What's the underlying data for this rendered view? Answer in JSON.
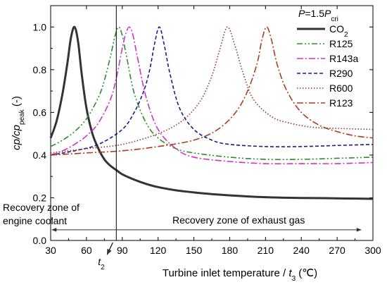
{
  "chart_data": {
    "type": "line",
    "xlabel": "Turbine inlet temperature / ",
    "xlabel_var": "t",
    "xlabel_sub": "3",
    "xlabel_unit": " (℃)",
    "ylabel_main": "cp/cp",
    "ylabel_sub": "peak",
    "ylabel_unit": " (-)",
    "xlim": [
      30,
      300
    ],
    "ylim": [
      0.0,
      1.1
    ],
    "x_ticks": [
      30,
      60,
      90,
      120,
      150,
      180,
      210,
      240,
      270,
      300
    ],
    "x_tick_labels": [
      "30",
      "60",
      "90",
      "120",
      "150",
      "180",
      "210",
      "240",
      "270",
      "300"
    ],
    "y_ticks": [
      0.0,
      0.2,
      0.4,
      0.6,
      0.8,
      1.0
    ],
    "y_tick_labels": [
      "0.0",
      "0.2",
      "0.4",
      "0.6",
      "0.8",
      "1.0"
    ],
    "grid": false,
    "legend_position": "top-right",
    "legend_title_main": "P",
    "legend_title_eq": "=1.5",
    "legend_title_var": "P",
    "legend_title_sub": "cri",
    "series": [
      {
        "name": "CO₂",
        "name_main": "CO",
        "name_sub": "2",
        "color": "#333333",
        "style": "solid",
        "peak_x": 50,
        "peak_y": 1.0,
        "x": [
          30,
          35,
          40,
          44,
          47,
          50,
          53,
          56,
          60,
          65,
          70,
          75,
          80,
          85,
          90,
          100,
          110,
          120,
          135,
          150,
          170,
          200,
          230,
          260,
          300
        ],
        "y": [
          0.48,
          0.56,
          0.69,
          0.83,
          0.95,
          1.0,
          0.93,
          0.78,
          0.62,
          0.5,
          0.43,
          0.38,
          0.35,
          0.33,
          0.31,
          0.285,
          0.265,
          0.25,
          0.235,
          0.225,
          0.215,
          0.205,
          0.2,
          0.198,
          0.195
        ]
      },
      {
        "name": "R125",
        "name_main": "R125",
        "name_sub": "",
        "color": "#2e8b2e",
        "style": "dashdotdot",
        "peak_x": 87,
        "peak_y": 1.0,
        "x": [
          30,
          40,
          50,
          60,
          70,
          75,
          80,
          84,
          87,
          90,
          94,
          100,
          110,
          120,
          135,
          150,
          180,
          210,
          240,
          270,
          300
        ],
        "y": [
          0.44,
          0.47,
          0.51,
          0.57,
          0.67,
          0.75,
          0.86,
          0.96,
          1.0,
          0.96,
          0.85,
          0.69,
          0.55,
          0.48,
          0.43,
          0.41,
          0.39,
          0.38,
          0.38,
          0.385,
          0.39
        ]
      },
      {
        "name": "R143a",
        "name_main": "R143a",
        "name_sub": "",
        "color": "#cc33cc",
        "style": "dashdot",
        "peak_x": 96,
        "peak_y": 1.0,
        "x": [
          30,
          40,
          50,
          60,
          70,
          80,
          85,
          90,
          93,
          96,
          99,
          103,
          110,
          120,
          135,
          150,
          180,
          210,
          240,
          270,
          300
        ],
        "y": [
          0.4,
          0.42,
          0.45,
          0.49,
          0.55,
          0.66,
          0.76,
          0.9,
          0.97,
          1.0,
          0.96,
          0.85,
          0.67,
          0.52,
          0.43,
          0.39,
          0.37,
          0.36,
          0.36,
          0.36,
          0.365
        ]
      },
      {
        "name": "R290",
        "name_main": "R290",
        "name_sub": "",
        "color": "#1a1a8c",
        "style": "dashed",
        "peak_x": 121,
        "peak_y": 1.0,
        "x": [
          30,
          50,
          70,
          90,
          100,
          108,
          113,
          117,
          121,
          125,
          130,
          138,
          150,
          165,
          180,
          210,
          240,
          270,
          300
        ],
        "y": [
          0.4,
          0.42,
          0.45,
          0.52,
          0.6,
          0.7,
          0.8,
          0.92,
          1.0,
          0.92,
          0.78,
          0.62,
          0.52,
          0.47,
          0.45,
          0.44,
          0.44,
          0.445,
          0.45
        ]
      },
      {
        "name": "R600",
        "name_main": "R600",
        "name_sub": "",
        "color": "#8b3a2e",
        "style": "dotted",
        "peak_x": 178,
        "peak_y": 1.0,
        "x": [
          30,
          60,
          90,
          120,
          140,
          155,
          165,
          172,
          178,
          184,
          192,
          200,
          215,
          230,
          250,
          270,
          300
        ],
        "y": [
          0.41,
          0.43,
          0.45,
          0.5,
          0.56,
          0.65,
          0.77,
          0.9,
          1.0,
          0.92,
          0.77,
          0.66,
          0.58,
          0.55,
          0.53,
          0.525,
          0.52
        ]
      },
      {
        "name": "R123",
        "name_main": "R123",
        "name_sub": "",
        "color": "#b03a1e",
        "style": "dashdot",
        "peak_x": 211,
        "peak_y": 1.0,
        "x": [
          30,
          60,
          90,
          120,
          150,
          170,
          185,
          195,
          203,
          207,
          211,
          215,
          220,
          228,
          240,
          255,
          270,
          285,
          300
        ],
        "y": [
          0.4,
          0.41,
          0.42,
          0.44,
          0.47,
          0.52,
          0.6,
          0.7,
          0.83,
          0.94,
          1.0,
          0.94,
          0.82,
          0.7,
          0.6,
          0.54,
          0.51,
          0.49,
          0.48
        ]
      }
    ],
    "vline_x": 85,
    "vline_label_main": "t",
    "vline_label_sub": "2",
    "zone_left": {
      "label_line1": "Recovery zone of",
      "label_line2": "engine coolant",
      "from": 85,
      "to": 30,
      "y": 0.05
    },
    "zone_right": {
      "label": "Recovery zone of exhaust gas",
      "from": 85,
      "to": 290,
      "y": 0.05
    }
  }
}
